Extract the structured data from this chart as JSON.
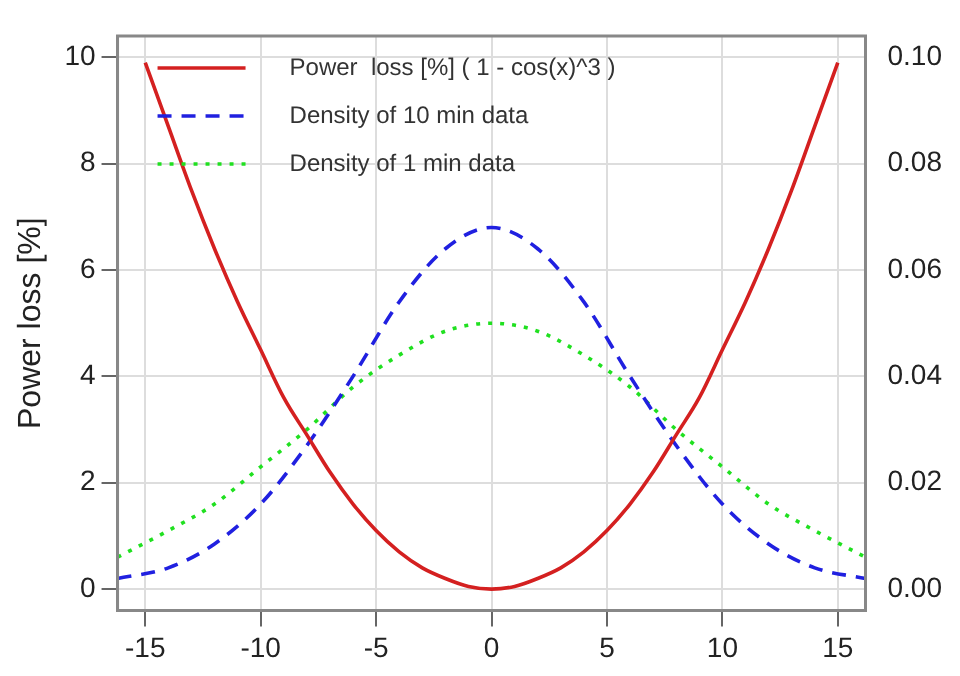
{
  "chart_data": {
    "type": "line",
    "ylabel": "Power loss [%]",
    "xlim": [
      -16.2,
      16.2
    ],
    "xticks": [
      -15,
      -10,
      -5,
      0,
      5,
      10,
      15
    ],
    "ylim": [
      -0.4,
      10.4
    ],
    "yticks": [
      0,
      2,
      4,
      6,
      8,
      10
    ],
    "y2lim": [
      -0.004,
      0.104
    ],
    "y2ticks": [
      {
        "value": 0,
        "label": "0.00"
      },
      {
        "value": 0.02,
        "label": "0.02"
      },
      {
        "value": 0.04,
        "label": "0.04"
      },
      {
        "value": 0.06,
        "label": "0.06"
      },
      {
        "value": 0.08,
        "label": "0.08"
      },
      {
        "value": 0.1,
        "label": "0.10"
      }
    ],
    "grid": true,
    "legend": "top left",
    "marker": "none",
    "series": [
      {
        "name": "Power  loss [%] ( 1 - cos(x)^3 )",
        "color": "#d42020",
        "line_style": "solid",
        "x": [
          -15,
          -14,
          -13,
          -12,
          -11,
          -10,
          -9,
          -8,
          -7,
          -6,
          -5,
          -4,
          -3,
          -2,
          -1,
          0,
          1,
          2,
          3,
          4,
          5,
          6,
          7,
          8,
          9,
          10,
          11,
          12,
          13,
          14,
          15
        ],
        "values": [
          9.9,
          8.7,
          7.5,
          6.4,
          5.4,
          4.5,
          3.6,
          2.9,
          2.2,
          1.6,
          1.1,
          0.7,
          0.4,
          0.2,
          0.05,
          0,
          0.05,
          0.2,
          0.4,
          0.7,
          1.1,
          1.6,
          2.2,
          2.9,
          3.6,
          4.5,
          5.4,
          6.4,
          7.5,
          8.7,
          9.9
        ]
      },
      {
        "name": "Density of 10 min data",
        "color": "#2020e0",
        "line_style": "dashed",
        "axis": "y2",
        "x": [
          -16.2,
          -14,
          -12,
          -10,
          -8,
          -6,
          -4,
          -2,
          0,
          2,
          4,
          6,
          8,
          10,
          12,
          14,
          16.2
        ],
        "values": [
          0.002,
          0.004,
          0.0085,
          0.016,
          0.027,
          0.04,
          0.054,
          0.064,
          0.068,
          0.064,
          0.054,
          0.04,
          0.027,
          0.016,
          0.0085,
          0.004,
          0.002
        ]
      },
      {
        "name": "Density of 1 min data",
        "color": "#20e020",
        "line_style": "dotted",
        "axis": "y2",
        "x": [
          -16.2,
          -14,
          -12,
          -10,
          -8,
          -6,
          -4,
          -2,
          0,
          2,
          4,
          6,
          8,
          10,
          12,
          14,
          16.2
        ],
        "values": [
          0.006,
          0.011,
          0.016,
          0.023,
          0.03,
          0.038,
          0.044,
          0.0485,
          0.05,
          0.0485,
          0.044,
          0.038,
          0.03,
          0.023,
          0.016,
          0.011,
          0.006
        ]
      }
    ]
  }
}
